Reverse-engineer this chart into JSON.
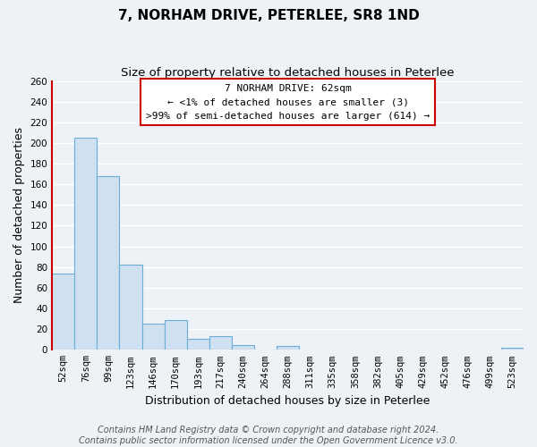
{
  "title": "7, NORHAM DRIVE, PETERLEE, SR8 1ND",
  "subtitle": "Size of property relative to detached houses in Peterlee",
  "xlabel": "Distribution of detached houses by size in Peterlee",
  "ylabel": "Number of detached properties",
  "bar_labels": [
    "52sqm",
    "76sqm",
    "99sqm",
    "123sqm",
    "146sqm",
    "170sqm",
    "193sqm",
    "217sqm",
    "240sqm",
    "264sqm",
    "288sqm",
    "311sqm",
    "335sqm",
    "358sqm",
    "382sqm",
    "405sqm",
    "429sqm",
    "452sqm",
    "476sqm",
    "499sqm",
    "523sqm"
  ],
  "bar_values": [
    74,
    205,
    168,
    82,
    25,
    29,
    11,
    13,
    5,
    0,
    4,
    0,
    0,
    0,
    0,
    0,
    0,
    0,
    0,
    0,
    2
  ],
  "bar_fill_color": "#cfe0f0",
  "bar_edge_color": "#6aaed6",
  "highlight_line_color": "#cc0000",
  "annotation_title": "7 NORHAM DRIVE: 62sqm",
  "annotation_line1": "← <1% of detached houses are smaller (3)",
  "annotation_line2": ">99% of semi-detached houses are larger (614) →",
  "annotation_box_fill": "#ffffff",
  "annotation_box_edge": "#cc0000",
  "ylim": [
    0,
    260
  ],
  "yticks": [
    0,
    20,
    40,
    60,
    80,
    100,
    120,
    140,
    160,
    180,
    200,
    220,
    240,
    260
  ],
  "background_color": "#eef2f7",
  "grid_color": "#ffffff",
  "title_fontsize": 11,
  "subtitle_fontsize": 9.5,
  "axis_label_fontsize": 9,
  "tick_fontsize": 7.5,
  "footer_fontsize": 7,
  "footer_line1": "Contains HM Land Registry data © Crown copyright and database right 2024.",
  "footer_line2": "Contains public sector information licensed under the Open Government Licence v3.0."
}
